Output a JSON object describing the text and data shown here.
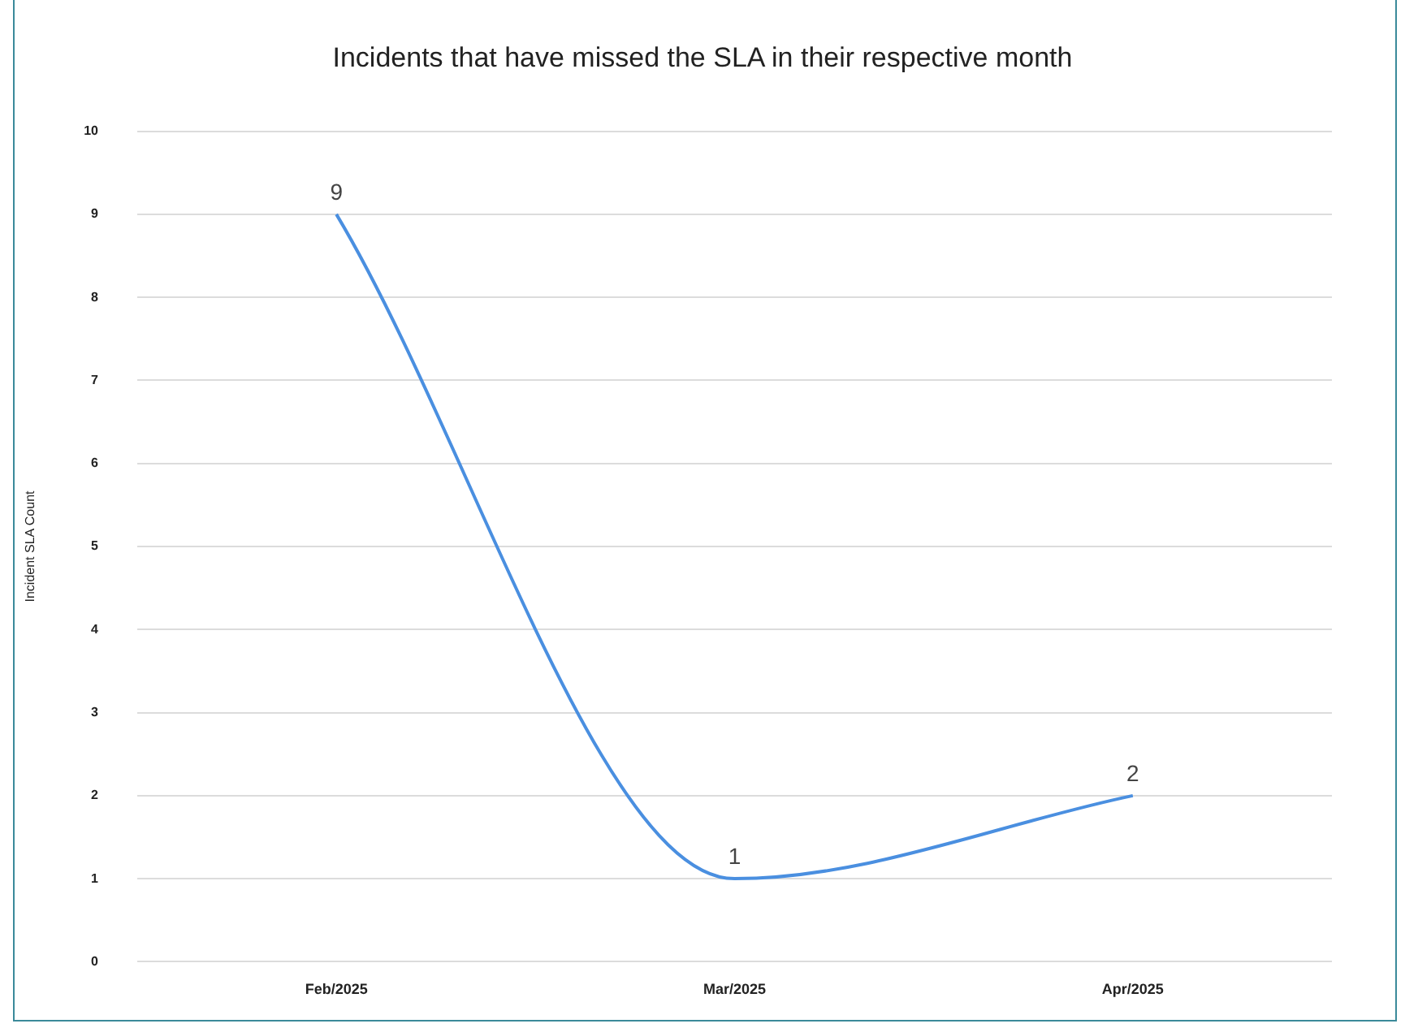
{
  "chart_data": {
    "type": "line",
    "title": "Incidents that have missed the SLA in their respective month",
    "ylabel": "Incident SLA Count",
    "categories": [
      "Feb/2025",
      "Mar/2025",
      "Apr/2025"
    ],
    "series": [
      {
        "color": "#4a8fe0",
        "values": [
          9,
          1,
          2
        ]
      }
    ],
    "ylim": [
      0,
      10
    ],
    "yticks": [
      0,
      1,
      2,
      3,
      4,
      5,
      6,
      7,
      8,
      9,
      10
    ],
    "grid": "y",
    "legend": false,
    "marker": "none",
    "line_style": "solid",
    "data_labels": true
  }
}
